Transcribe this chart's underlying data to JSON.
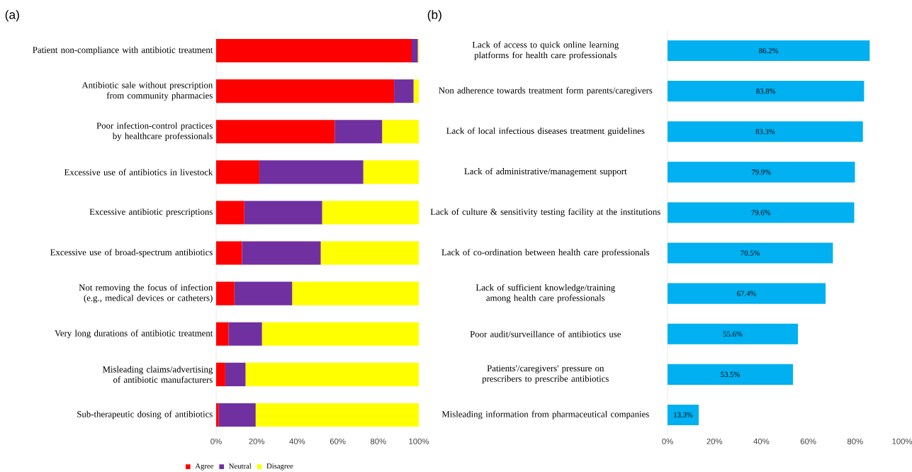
{
  "chart_data": [
    {
      "type": "bar",
      "title": "(a)",
      "orientation": "horizontal",
      "stacked": true,
      "legend": "bottom",
      "categories": [
        "Patient non-compliance with antibiotic treatment",
        "Antibiotic sale without prescription from community pharmacies",
        "Poor infection-control practices by healthcare professionals",
        "Excessive use of antibiotics in livestock",
        "Excessive antibiotic prescriptions",
        "Excessive use of broad-spectrum antibiotics",
        "Not removing the focus of infection (e.g., medical devices or catheters)",
        "Very long durations of antibiotic treatment",
        "Misleading claims/advertising of antibiotic manufacturers",
        "Sub-therapeutic dosing of antibiotics"
      ],
      "series": [
        {
          "name": "Agree",
          "color": "#ff0000",
          "values": [
            96.5,
            87.8,
            58.5,
            21.3,
            13.9,
            12.7,
            9.0,
            6.1,
            4.5,
            1.3
          ]
        },
        {
          "name": "Neutral",
          "color": "#7030a0",
          "values": [
            3.0,
            9.6,
            23.4,
            51.3,
            38.4,
            38.9,
            28.5,
            16.5,
            10.0,
            18.2
          ]
        },
        {
          "name": "Disagree",
          "color": "#ffff00",
          "values": [
            0.5,
            2.6,
            18.1,
            27.4,
            47.7,
            48.4,
            62.5,
            77.4,
            85.5,
            80.5
          ]
        }
      ],
      "xlim": [
        0,
        100
      ],
      "xticks": [
        {
          "value": 0,
          "label": "0%"
        },
        {
          "value": 20,
          "label": "20%"
        },
        {
          "value": 40,
          "label": "40%"
        },
        {
          "value": 60,
          "label": "60%"
        },
        {
          "value": 80,
          "label": "80%"
        },
        {
          "value": 100,
          "label": "100%"
        }
      ]
    },
    {
      "type": "bar",
      "title": "(b)",
      "orientation": "horizontal",
      "color": "#00b0f0",
      "categories": [
        "Lack of access to quick online learning platforms for health care professionals",
        "Non adherence towards treatment form parents/caregivers",
        "Lack of local infectious diseases treatment guidelines",
        "Lack of administrative/management support",
        "Lack of culture & sensitivity testing facility at the institutions",
        "Lack of co-ordination between health care professionals",
        "Lack of sufficient knowledge/training among health care professionals",
        "Poor audit/surveillance of antibiotics use",
        "Patients'/caregivers' pressure on prescribers to prescribe antibiotics",
        "Misleading information from pharmaceutical companies"
      ],
      "values": [
        86.2,
        83.8,
        83.3,
        79.9,
        79.6,
        70.5,
        67.4,
        55.6,
        53.5,
        13.3
      ],
      "value_labels": [
        "86.2%",
        "83.8%",
        "83.3%",
        "79.9%",
        "79.6%",
        "70.5%",
        "67.4%",
        "55.6%",
        "53.5%",
        "13.3%"
      ],
      "xlim": [
        0,
        100
      ],
      "xticks": [
        {
          "value": 0,
          "label": "0%"
        },
        {
          "value": 20,
          "label": "20%"
        },
        {
          "value": 40,
          "label": "40%"
        },
        {
          "value": 60,
          "label": "60%"
        },
        {
          "value": 80,
          "label": "80%"
        },
        {
          "value": 100,
          "label": "100%"
        }
      ]
    }
  ]
}
